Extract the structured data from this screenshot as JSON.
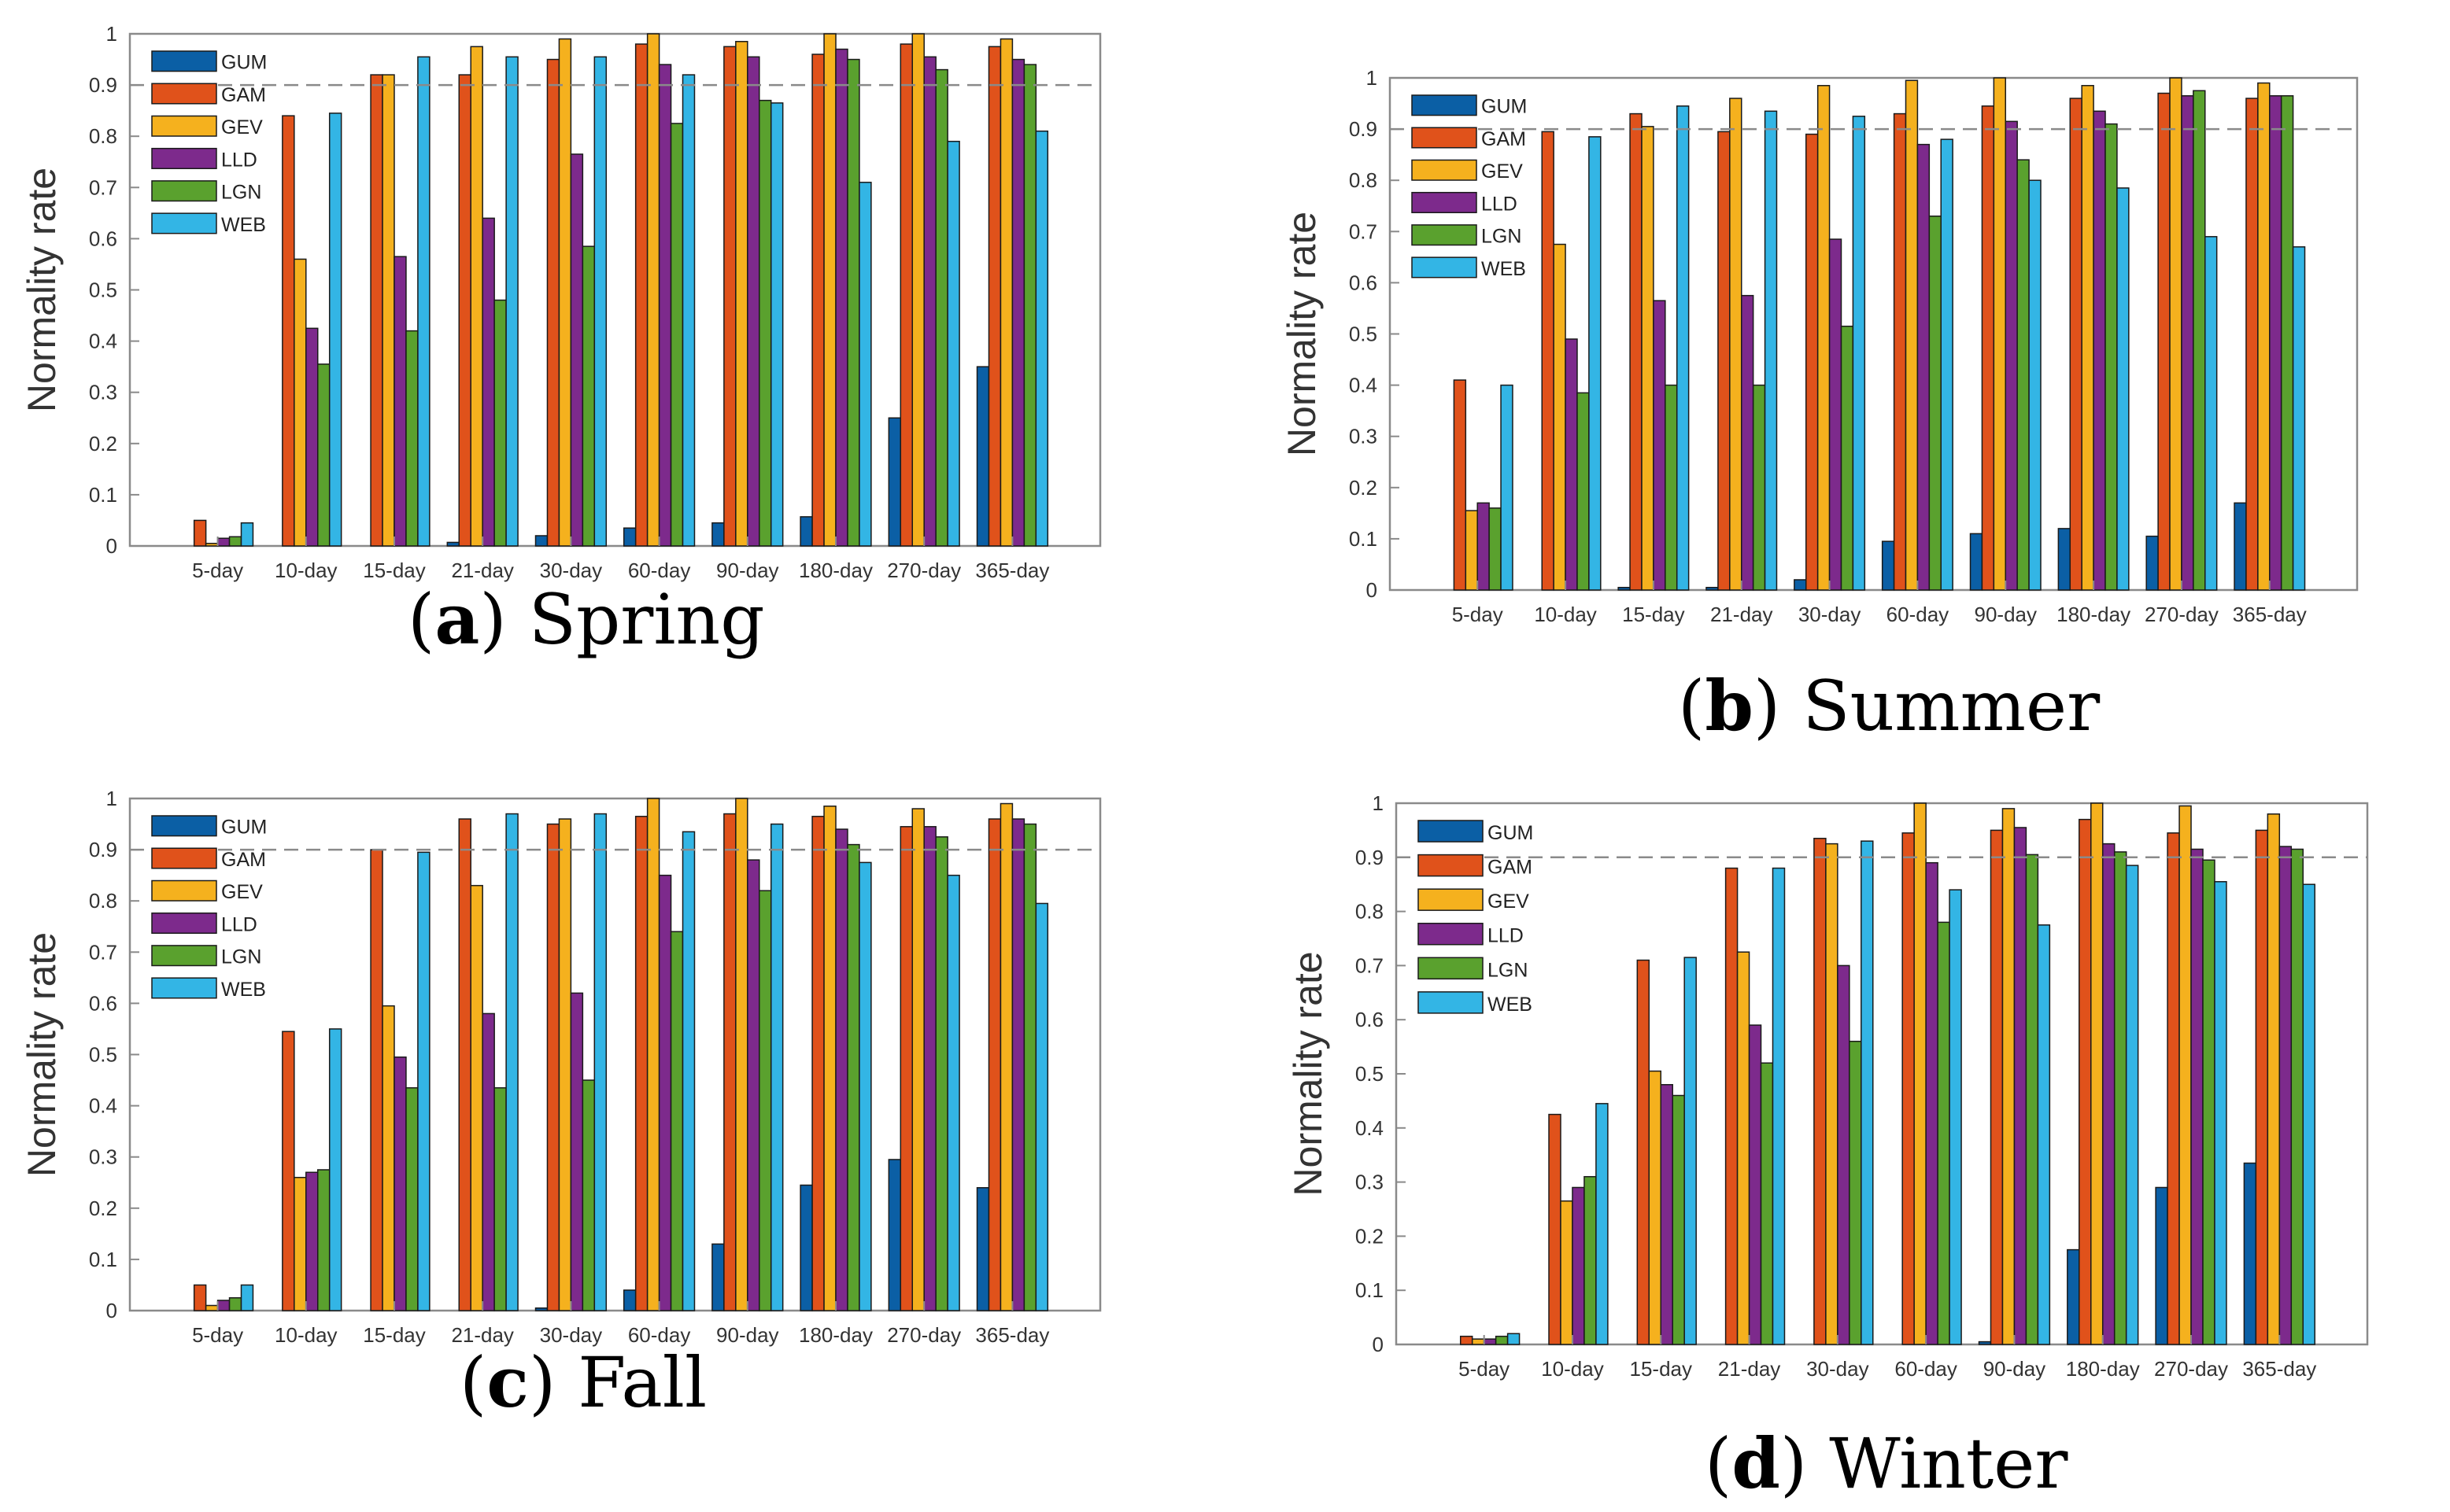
{
  "figure": {
    "panels": [
      {
        "letter": "a",
        "season": "Spring"
      },
      {
        "letter": "b",
        "season": "Summer"
      },
      {
        "letter": "c",
        "season": "Fall"
      },
      {
        "letter": "d",
        "season": "Winter"
      }
    ]
  },
  "chart_data": [
    {
      "type": "bar",
      "title": "Spring",
      "xlabel": "",
      "ylabel": "Normality rate",
      "ylim": [
        0,
        1
      ],
      "yticks": [
        0,
        0.1,
        0.2,
        0.3,
        0.4,
        0.5,
        0.6,
        0.7,
        0.8,
        0.9,
        1
      ],
      "reference_line": 0.9,
      "legend_position": "top-left",
      "categories": [
        "5-day",
        "10-day",
        "15-day",
        "21-day",
        "30-day",
        "60-day",
        "90-day",
        "180-day",
        "270-day",
        "365-day"
      ],
      "series": [
        {
          "name": "GUM",
          "color": "#0b5fa5",
          "values": [
            0,
            0,
            0,
            0.007,
            0.02,
            0.035,
            0.045,
            0.057,
            0.25,
            0.35
          ]
        },
        {
          "name": "GAM",
          "color": "#e0521b",
          "values": [
            0.05,
            0.84,
            0.92,
            0.92,
            0.95,
            0.98,
            0.975,
            0.96,
            0.98,
            0.975
          ]
        },
        {
          "name": "GEV",
          "color": "#f5b11e",
          "values": [
            0.005,
            0.56,
            0.92,
            0.975,
            0.99,
            1.0,
            0.985,
            1.0,
            1.0,
            0.99
          ]
        },
        {
          "name": "LLD",
          "color": "#7d2a8c",
          "values": [
            0.015,
            0.425,
            0.565,
            0.64,
            0.765,
            0.94,
            0.955,
            0.97,
            0.955,
            0.95
          ]
        },
        {
          "name": "LGN",
          "color": "#5aa12e",
          "values": [
            0.018,
            0.355,
            0.42,
            0.48,
            0.585,
            0.825,
            0.87,
            0.95,
            0.93,
            0.94
          ]
        },
        {
          "name": "WEB",
          "color": "#33b5e5",
          "values": [
            0.045,
            0.845,
            0.955,
            0.955,
            0.955,
            0.92,
            0.865,
            0.71,
            0.79,
            0.81
          ]
        }
      ]
    },
    {
      "type": "bar",
      "title": "Summer",
      "xlabel": "",
      "ylabel": "Normality rate",
      "ylim": [
        0,
        1
      ],
      "yticks": [
        0,
        0.1,
        0.2,
        0.3,
        0.4,
        0.5,
        0.6,
        0.7,
        0.8,
        0.9,
        1
      ],
      "reference_line": 0.9,
      "legend_position": "top-left",
      "categories": [
        "5-day",
        "10-day",
        "15-day",
        "21-day",
        "30-day",
        "60-day",
        "90-day",
        "180-day",
        "270-day",
        "365-day"
      ],
      "series": [
        {
          "name": "GUM",
          "color": "#0b5fa5",
          "values": [
            0,
            0,
            0.005,
            0.005,
            0.02,
            0.095,
            0.11,
            0.12,
            0.105,
            0.17
          ]
        },
        {
          "name": "GAM",
          "color": "#e0521b",
          "values": [
            0.41,
            0.895,
            0.93,
            0.895,
            0.89,
            0.93,
            0.945,
            0.96,
            0.97,
            0.96
          ]
        },
        {
          "name": "GEV",
          "color": "#f5b11e",
          "values": [
            0.155,
            0.675,
            0.905,
            0.96,
            0.985,
            0.995,
            1.0,
            0.985,
            1.0,
            0.99
          ]
        },
        {
          "name": "LLD",
          "color": "#7d2a8c",
          "values": [
            0.17,
            0.49,
            0.565,
            0.575,
            0.685,
            0.87,
            0.915,
            0.935,
            0.965,
            0.965
          ]
        },
        {
          "name": "LGN",
          "color": "#5aa12e",
          "values": [
            0.16,
            0.385,
            0.4,
            0.4,
            0.515,
            0.73,
            0.84,
            0.91,
            0.975,
            0.965
          ]
        },
        {
          "name": "WEB",
          "color": "#33b5e5",
          "values": [
            0.4,
            0.885,
            0.945,
            0.935,
            0.925,
            0.88,
            0.8,
            0.785,
            0.69,
            0.67
          ]
        }
      ]
    },
    {
      "type": "bar",
      "title": "Fall",
      "xlabel": "",
      "ylabel": "Normality rate",
      "ylim": [
        0,
        1
      ],
      "yticks": [
        0,
        0.1,
        0.2,
        0.3,
        0.4,
        0.5,
        0.6,
        0.7,
        0.8,
        0.9,
        1
      ],
      "reference_line": 0.9,
      "legend_position": "top-left",
      "categories": [
        "5-day",
        "10-day",
        "15-day",
        "21-day",
        "30-day",
        "60-day",
        "90-day",
        "180-day",
        "270-day",
        "365-day"
      ],
      "series": [
        {
          "name": "GUM",
          "color": "#0b5fa5",
          "values": [
            0,
            0,
            0,
            0,
            0.005,
            0.04,
            0.13,
            0.245,
            0.295,
            0.24
          ]
        },
        {
          "name": "GAM",
          "color": "#e0521b",
          "values": [
            0.05,
            0.545,
            0.9,
            0.96,
            0.95,
            0.965,
            0.97,
            0.965,
            0.945,
            0.96
          ]
        },
        {
          "name": "GEV",
          "color": "#f5b11e",
          "values": [
            0.01,
            0.26,
            0.595,
            0.83,
            0.96,
            1.0,
            1.0,
            0.985,
            0.98,
            0.99
          ]
        },
        {
          "name": "LLD",
          "color": "#7d2a8c",
          "values": [
            0.02,
            0.27,
            0.495,
            0.58,
            0.62,
            0.85,
            0.88,
            0.94,
            0.945,
            0.96
          ]
        },
        {
          "name": "LGN",
          "color": "#5aa12e",
          "values": [
            0.025,
            0.275,
            0.435,
            0.435,
            0.45,
            0.74,
            0.82,
            0.91,
            0.925,
            0.95
          ]
        },
        {
          "name": "WEB",
          "color": "#33b5e5",
          "values": [
            0.05,
            0.55,
            0.895,
            0.97,
            0.97,
            0.935,
            0.95,
            0.875,
            0.85,
            0.795
          ]
        }
      ]
    },
    {
      "type": "bar",
      "title": "Winter",
      "xlabel": "",
      "ylabel": "Normality rate",
      "ylim": [
        0,
        1
      ],
      "yticks": [
        0,
        0.1,
        0.2,
        0.3,
        0.4,
        0.5,
        0.6,
        0.7,
        0.8,
        0.9,
        1
      ],
      "reference_line": 0.9,
      "legend_position": "top-left",
      "categories": [
        "5-day",
        "10-day",
        "15-day",
        "21-day",
        "30-day",
        "60-day",
        "90-day",
        "180-day",
        "270-day",
        "365-day"
      ],
      "series": [
        {
          "name": "GUM",
          "color": "#0b5fa5",
          "values": [
            0,
            0,
            0,
            0,
            0,
            0,
            0.005,
            0.175,
            0.29,
            0.335
          ]
        },
        {
          "name": "GAM",
          "color": "#e0521b",
          "values": [
            0.015,
            0.425,
            0.71,
            0.88,
            0.935,
            0.945,
            0.95,
            0.97,
            0.945,
            0.95
          ]
        },
        {
          "name": "GEV",
          "color": "#f5b11e",
          "values": [
            0.01,
            0.265,
            0.505,
            0.725,
            0.925,
            1.0,
            0.99,
            1.0,
            0.995,
            0.98
          ]
        },
        {
          "name": "LLD",
          "color": "#7d2a8c",
          "values": [
            0.01,
            0.29,
            0.48,
            0.59,
            0.7,
            0.89,
            0.955,
            0.925,
            0.915,
            0.92
          ]
        },
        {
          "name": "LGN",
          "color": "#5aa12e",
          "values": [
            0.015,
            0.31,
            0.46,
            0.52,
            0.56,
            0.78,
            0.905,
            0.91,
            0.895,
            0.915
          ]
        },
        {
          "name": "WEB",
          "color": "#33b5e5",
          "values": [
            0.02,
            0.445,
            0.715,
            0.88,
            0.93,
            0.84,
            0.775,
            0.885,
            0.855,
            0.85
          ]
        }
      ]
    }
  ]
}
